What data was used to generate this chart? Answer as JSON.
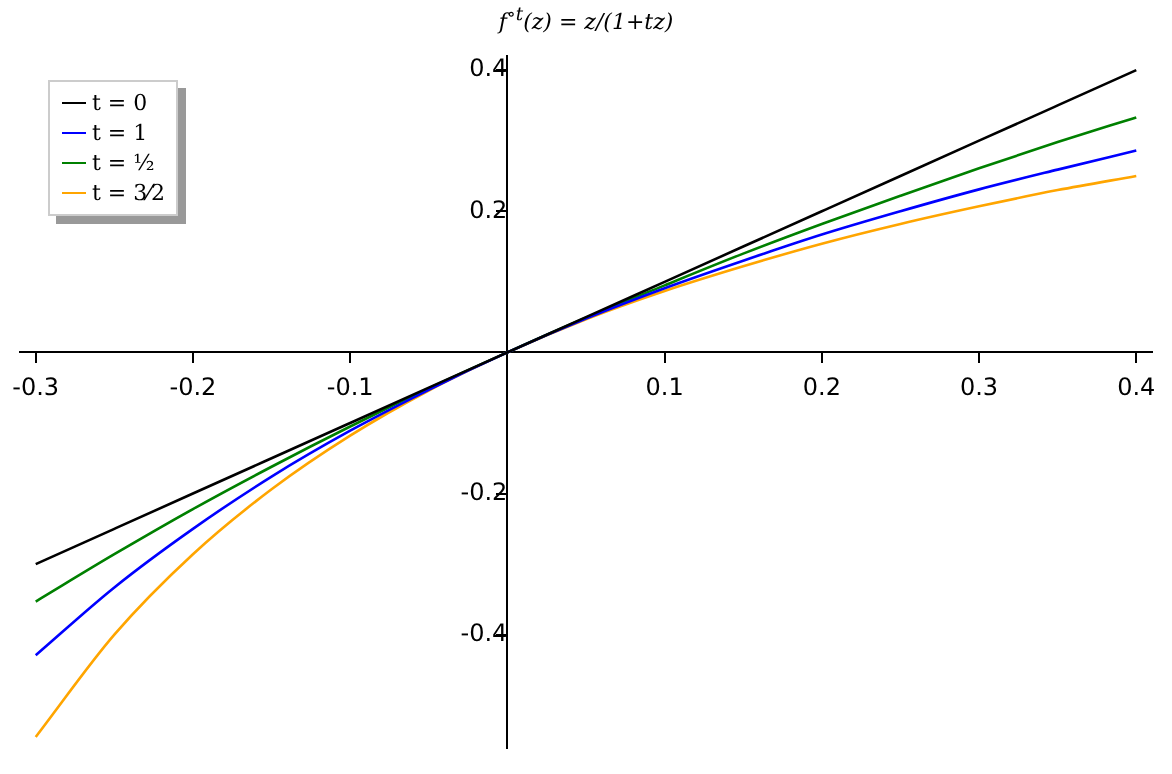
{
  "chart_data": {
    "type": "line",
    "title": "f$^{∘t}$(z) = z/(1+tz)",
    "x": [
      -0.3,
      -0.25,
      -0.2,
      -0.15,
      -0.1,
      -0.05,
      0,
      0.05,
      0.1,
      0.15,
      0.2,
      0.25,
      0.3,
      0.35,
      0.4
    ],
    "series": [
      {
        "name": "t = 0",
        "color": "#000000",
        "values": [
          -0.3,
          -0.25,
          -0.2,
          -0.15,
          -0.1,
          -0.05,
          0,
          0.05,
          0.1,
          0.15,
          0.2,
          0.25,
          0.3,
          0.35,
          0.4
        ]
      },
      {
        "name": "t = 1",
        "color": "#0000ff",
        "values": [
          -0.429,
          -0.333,
          -0.25,
          -0.176,
          -0.111,
          -0.053,
          0,
          0.048,
          0.091,
          0.13,
          0.167,
          0.2,
          0.231,
          0.259,
          0.286
        ]
      },
      {
        "name": "t = ½",
        "color": "#008000",
        "values": [
          -0.353,
          -0.286,
          -0.222,
          -0.162,
          -0.105,
          -0.051,
          0,
          0.049,
          0.095,
          0.14,
          0.182,
          0.222,
          0.261,
          0.298,
          0.333
        ]
      },
      {
        "name": "t = 3⁄2",
        "color": "#ffa500",
        "values": [
          -0.545,
          -0.4,
          -0.286,
          -0.194,
          -0.118,
          -0.054,
          0,
          0.047,
          0.087,
          0.122,
          0.154,
          0.182,
          0.207,
          0.23,
          0.25
        ]
      }
    ],
    "xlim": [
      -0.31,
      0.41
    ],
    "ylim": [
      -0.56,
      0.42
    ],
    "xticks": [
      -0.3,
      -0.2,
      -0.1,
      0.1,
      0.2,
      0.3,
      0.4
    ],
    "yticks": [
      -0.4,
      -0.2,
      0.2,
      0.4
    ],
    "grid": false,
    "legend": "top left",
    "marker": "none",
    "line_style": "solid"
  }
}
